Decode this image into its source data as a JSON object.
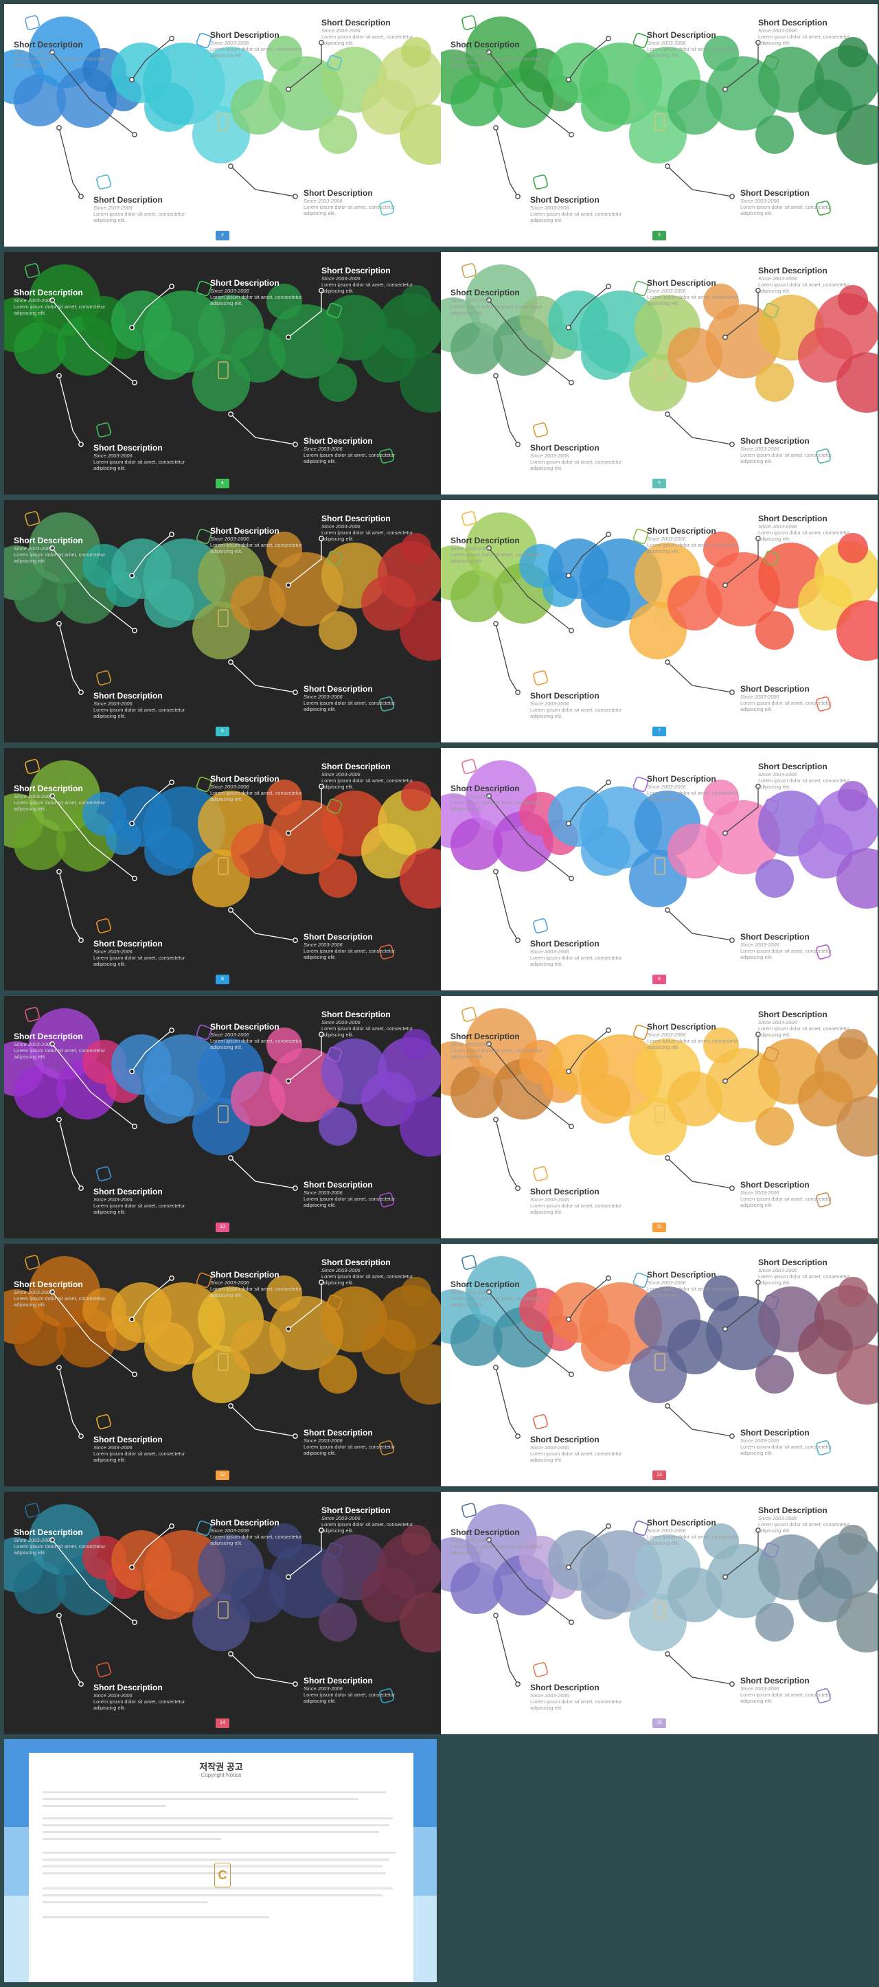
{
  "slides": [
    {
      "theme": "light",
      "accent": "#3f8fd2",
      "page": "2",
      "circles": [
        "#2f95e0",
        "#3a88d5",
        "#2a7ac8",
        "#3ec8d6",
        "#5dd4dc",
        "#7fd07a",
        "#9bd67a",
        "#c7d97e",
        "#b9d46a"
      ],
      "icons": [
        "#5aa2dd",
        "#4fa0d8",
        "#54b9c9",
        "#57c0cf",
        "#54c9d6"
      ]
    },
    {
      "theme": "light",
      "accent": "#3ba554",
      "page": "3",
      "circles": [
        "#3aa648",
        "#3bb052",
        "#2f9b40",
        "#52c46a",
        "#63d07f",
        "#48b568",
        "#3ea55c",
        "#2f9150",
        "#2a8546"
      ],
      "icons": [
        "#3aa648",
        "#3aa648",
        "#3aa648",
        "#3aa648",
        "#3aa648"
      ]
    },
    {
      "theme": "dark",
      "accent": "#3fbf5a",
      "page": "4",
      "circles": [
        "#1f8f2a",
        "#1f9530",
        "#1a8226",
        "#2aa54a",
        "#2f9b4c",
        "#279444",
        "#20863b",
        "#1b7a36",
        "#1a7033"
      ],
      "icons": [
        "#3fbf5a",
        "#3fbf5a",
        "#3fbf5a",
        "#3fbf5a",
        "#3fbf5a"
      ]
    },
    {
      "theme": "light",
      "accent": "#5fc0b7",
      "page": "5",
      "circles": [
        "#7bbf8c",
        "#5ba572",
        "#8fbf7d",
        "#48c7ae",
        "#a8cf6c",
        "#e89a4b",
        "#e8b844",
        "#e0505a",
        "#d63f4d"
      ],
      "icons": [
        "#c9a24a",
        "#63b36a",
        "#d99b3a",
        "#8ac26a",
        "#53b0a3"
      ]
    },
    {
      "theme": "dark",
      "accent": "#3bc0c9",
      "page": "6",
      "circles": [
        "#4e9a5e",
        "#3c8a50",
        "#2aa390",
        "#3db09c",
        "#8fa84d",
        "#c9892a",
        "#d4a231",
        "#c73935",
        "#b82d2e"
      ],
      "icons": [
        "#d6a53b",
        "#67b06c",
        "#d0962f",
        "#79b15a",
        "#4fb0a3"
      ]
    },
    {
      "theme": "light",
      "accent": "#2e9ede",
      "page": "7",
      "circles": [
        "#9ccc57",
        "#84bb44",
        "#3aa6dd",
        "#2f8fd4",
        "#f7b23f",
        "#f4624a",
        "#f2553f",
        "#f4d24a",
        "#ef4a48"
      ],
      "icons": [
        "#f2b93a",
        "#8fc24b",
        "#f39a34",
        "#7ab548",
        "#f06a4a"
      ]
    },
    {
      "theme": "dark",
      "accent": "#2e9ede",
      "page": "8",
      "circles": [
        "#7bb338",
        "#65a128",
        "#2a8fcf",
        "#1f7bbf",
        "#e3a72a",
        "#e05a2e",
        "#d94a2a",
        "#e6c43a",
        "#cf3a32"
      ],
      "icons": [
        "#e9b032",
        "#86ba3e",
        "#e59328",
        "#74ad3a",
        "#e2623a"
      ]
    },
    {
      "theme": "light",
      "accent": "#e8558a",
      "page": "9",
      "circles": [
        "#c577e8",
        "#b34ad6",
        "#e64f8c",
        "#4fa8e4",
        "#3e93dc",
        "#f27eb6",
        "#8f6ad8",
        "#a46fe0",
        "#9b5ed0"
      ],
      "icons": [
        "#e86b94",
        "#a467d6",
        "#4f9fdc",
        "#a86ad8",
        "#b45bd0"
      ]
    },
    {
      "theme": "dark",
      "accent": "#e8558a",
      "page": "10",
      "circles": [
        "#a846d8",
        "#9b2fcf",
        "#d8357a",
        "#3f8fd6",
        "#2a78c8",
        "#e8589e",
        "#7a4fc8",
        "#8845d0",
        "#7936c0"
      ],
      "icons": [
        "#e05a8c",
        "#9b59d0",
        "#3f93d6",
        "#9f5bd2",
        "#a54ec8"
      ]
    },
    {
      "theme": "light",
      "accent": "#f5a142",
      "page": "11",
      "circles": [
        "#e99a48",
        "#c98038",
        "#f29a3e",
        "#f7b23f",
        "#f9c84a",
        "#f5be45",
        "#e8a33a",
        "#d99138",
        "#c98a4a"
      ],
      "icons": [
        "#e3a03b",
        "#d68f3a",
        "#f0a83f",
        "#d98c3a",
        "#c98c4a"
      ]
    },
    {
      "theme": "dark",
      "accent": "#f5a142",
      "page": "12",
      "circles": [
        "#c56f16",
        "#b05f10",
        "#d88a1d",
        "#e2a62a",
        "#e8b830",
        "#d9a02a",
        "#c98718",
        "#b67412",
        "#a46a14"
      ],
      "icons": [
        "#e39a2c",
        "#cf8524",
        "#e6a630",
        "#d58c24",
        "#c98a34"
      ]
    },
    {
      "theme": "light",
      "accent": "#e0566a",
      "page": "13",
      "circles": [
        "#5fb5c9",
        "#3f8fa4",
        "#e64b5c",
        "#f07c4a",
        "#6c6b9a",
        "#59618e",
        "#7b5f85",
        "#8a4e63",
        "#a05a6a"
      ],
      "icons": [
        "#3f7fa8",
        "#58a9c4",
        "#e46d54",
        "#6b6aa0",
        "#4fb3cc"
      ]
    },
    {
      "theme": "dark",
      "accent": "#e0566a",
      "page": "14",
      "circles": [
        "#2d8aa0",
        "#216f84",
        "#c8323e",
        "#dc5f2a",
        "#4e5088",
        "#3d4478",
        "#5e416c",
        "#6e3048",
        "#7a3448"
      ],
      "icons": [
        "#2a6a98",
        "#3aa0bc",
        "#d65a3a",
        "#4d4c8e",
        "#2fa7c4"
      ]
    },
    {
      "theme": "light",
      "accent": "#b9a8d8",
      "page": "15",
      "circles": [
        "#9a8fd2",
        "#7b6fc4",
        "#b9a0d8",
        "#8fa3bf",
        "#9cc0cf",
        "#8fb3c2",
        "#7f97a8",
        "#6f8a96",
        "#7a8c92"
      ],
      "icons": [
        "#4f6f9a",
        "#7a6cc4",
        "#e07a55",
        "#8a7fc8",
        "#8a7fc8"
      ]
    }
  ],
  "copy": {
    "title": "Short Description",
    "since": "Since 2003-2006",
    "body": "Lorem ipsum dolor sit amet, consectetur adipiscing elit."
  },
  "notice": {
    "title": "저작권 공고",
    "subtitle": "Copyright Notice"
  }
}
